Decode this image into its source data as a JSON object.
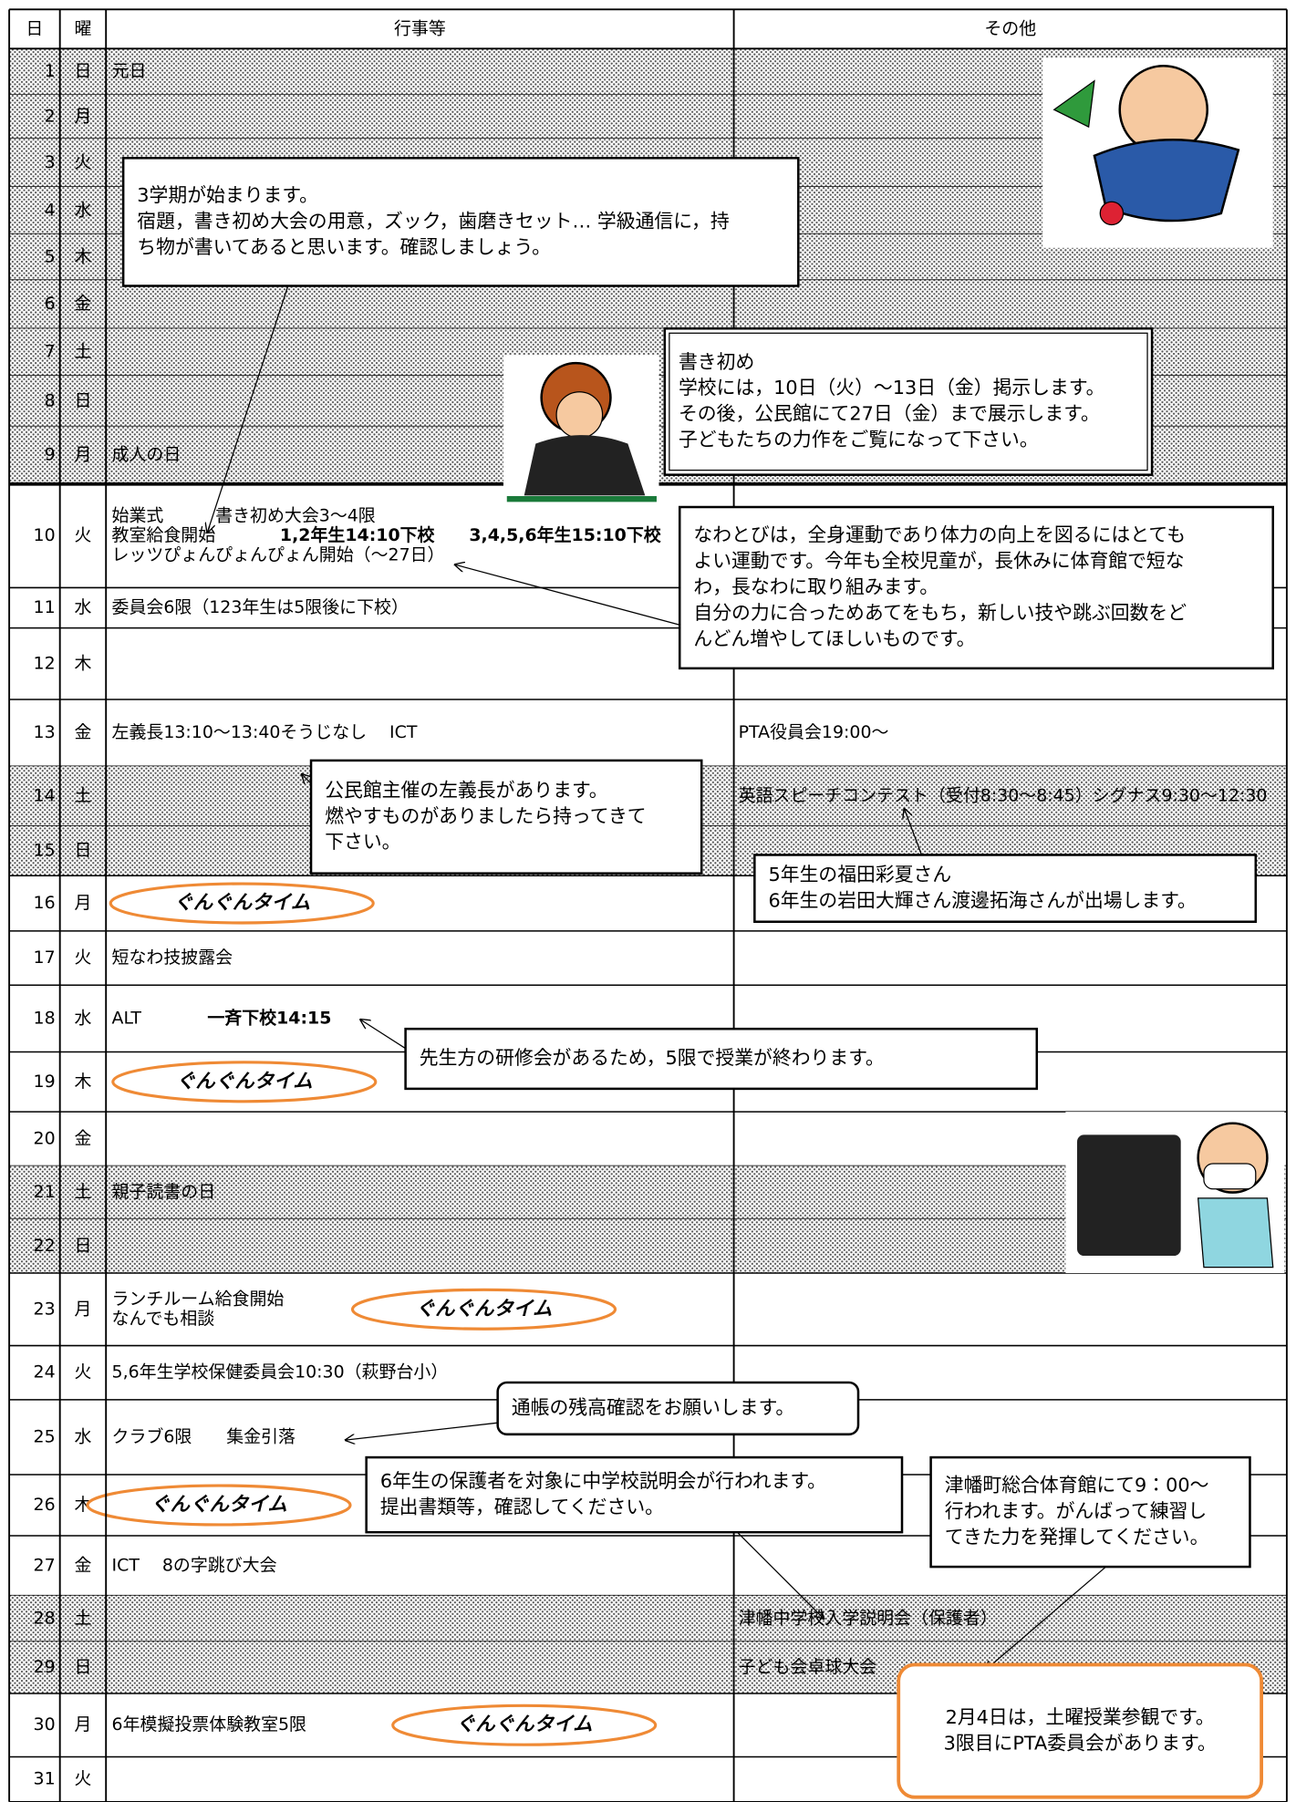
{
  "header": [
    "日",
    "曜",
    "行事等",
    "その他"
  ],
  "rows": [
    {
      "day": 1,
      "weekday": "日",
      "events": [
        "元日"
      ],
      "shaded": true
    },
    {
      "day": 2,
      "weekday": "月",
      "events": [],
      "shaded": true
    },
    {
      "day": 3,
      "weekday": "火",
      "events": [],
      "shaded": true
    },
    {
      "day": 4,
      "weekday": "水",
      "events": [],
      "shaded": true
    },
    {
      "day": 5,
      "weekday": "木",
      "events": [],
      "shaded": true
    },
    {
      "day": 6,
      "weekday": "金",
      "events": [],
      "shaded": true
    },
    {
      "day": 7,
      "weekday": "土",
      "events": [],
      "shaded": true
    },
    {
      "day": 8,
      "weekday": "日",
      "events": [],
      "shaded": true
    },
    {
      "day": 9,
      "weekday": "月",
      "events": [
        "成人の日"
      ],
      "shaded": true
    },
    {
      "day": 10,
      "weekday": "火",
      "events": [
        "始業式　　　書き初め大会3～4限",
        "教室給食開始",
        "レッツぴょんぴょんぴょん開始（～27日）"
      ],
      "bold": [
        "1,2年生14:10下校　　3,4,5,6年生15:10下校"
      ],
      "shaded": false
    },
    {
      "day": 11,
      "weekday": "水",
      "events": [
        "委員会6限（123年生は5限後に下校）"
      ],
      "shaded": false
    },
    {
      "day": 12,
      "weekday": "木",
      "events": [],
      "shaded": false
    },
    {
      "day": 13,
      "weekday": "金",
      "events": [
        "左義長13:10～13:40そうじなし　 ICT"
      ],
      "other": "PTA役員会19:00～",
      "shaded": false
    },
    {
      "day": 14,
      "weekday": "土",
      "events": [],
      "other": "英語スピーチコンテスト（受付8:30～8:45）シグナス9:30～12:30",
      "shaded": true
    },
    {
      "day": 15,
      "weekday": "日",
      "events": [],
      "shaded": true
    },
    {
      "day": 16,
      "weekday": "月",
      "events": [],
      "badge": "ぐんぐんタイム",
      "shaded": false
    },
    {
      "day": 17,
      "weekday": "火",
      "events": [
        "短なわ技披露会"
      ],
      "shaded": false
    },
    {
      "day": 18,
      "weekday": "水",
      "events": [
        "ALT"
      ],
      "bold": [
        "一斉下校14:15"
      ],
      "shaded": false
    },
    {
      "day": 19,
      "weekday": "木",
      "events": [],
      "badge": "ぐんぐんタイム",
      "shaded": false
    },
    {
      "day": 20,
      "weekday": "金",
      "events": [],
      "shaded": false
    },
    {
      "day": 21,
      "weekday": "土",
      "events": [
        "親子読書の日"
      ],
      "shaded": true
    },
    {
      "day": 22,
      "weekday": "日",
      "events": [],
      "shaded": true
    },
    {
      "day": 23,
      "weekday": "月",
      "events": [
        "ランチルーム給食開始",
        "なんでも相談"
      ],
      "badge": "ぐんぐんタイム",
      "shaded": false
    },
    {
      "day": 24,
      "weekday": "火",
      "events": [
        "5,6年生学校保健委員会10:30（萩野台小）"
      ],
      "shaded": false
    },
    {
      "day": 25,
      "weekday": "水",
      "events": [
        "クラブ6限　　集金引落"
      ],
      "shaded": false
    },
    {
      "day": 26,
      "weekday": "木",
      "events": [],
      "badge": "ぐんぐんタイム",
      "shaded": false
    },
    {
      "day": 27,
      "weekday": "金",
      "events": [
        "ICT　 8の字跳び大会"
      ],
      "shaded": false
    },
    {
      "day": 28,
      "weekday": "土",
      "events": [],
      "other": "津幡中学校入学説明会（保護者）",
      "shaded": true
    },
    {
      "day": 29,
      "weekday": "日",
      "events": [],
      "other": "子ども会卓球大会",
      "shaded": true
    },
    {
      "day": 30,
      "weekday": "月",
      "events": [
        "6年模擬投票体験教室5限"
      ],
      "badge": "ぐんぐんタイム",
      "shaded": false
    },
    {
      "day": 31,
      "weekday": "火",
      "events": [],
      "shaded": false
    }
  ],
  "notes": [
    {
      "lines": [
        "3学期が始まります。",
        "宿題，書き初め大会の用意，ズック，歯磨きセット…  学級通信に，持",
        "ち物が書いてあると思います。確認しましょう。"
      ]
    },
    {
      "lines": [
        "書き初め",
        "学校には，10日（火）～13日（金）掲示します。",
        "その後，公民館にて27日（金）まで展示します。",
        "子どもたちの力作をご覧になって下さい。"
      ]
    },
    {
      "lines": [
        "なわとびは，全身運動であり体力の向上を図るにはとても",
        "よい運動です。今年も全校児童が，長休みに体育館で短な",
        "わ，長なわに取り組みます。",
        "自分の力に合っためあてをもち，新しい技や跳ぶ回数をど",
        "んどん増やしてほしいものです。"
      ]
    },
    {
      "lines": [
        "公民館主催の左義長があります。",
        "燃やすものがありましたら持ってきて",
        "下さい。"
      ]
    },
    {
      "lines": [
        "5年生の福田彩夏さん",
        "6年生の岩田大輝さん渡邊拓海さんが出場します。"
      ]
    },
    {
      "lines": [
        "先生方の研修会があるため，5限で授業が終わります。"
      ]
    },
    {
      "lines": [
        "通帳の残高確認をお願いします。"
      ]
    },
    {
      "lines": [
        "6年生の保護者を対象に中学校説明会が行われます。",
        "提出書類等，確認してください。"
      ]
    },
    {
      "lines": [
        "津幡町総合体育館にて9：00～",
        "行われます。がんばって練習し",
        "てきた力を発揮してください。"
      ]
    },
    {
      "lines": [
        "2月4日は，土曜授業参観です。",
        "3限目にPTA委員会があります。"
      ]
    }
  ]
}
